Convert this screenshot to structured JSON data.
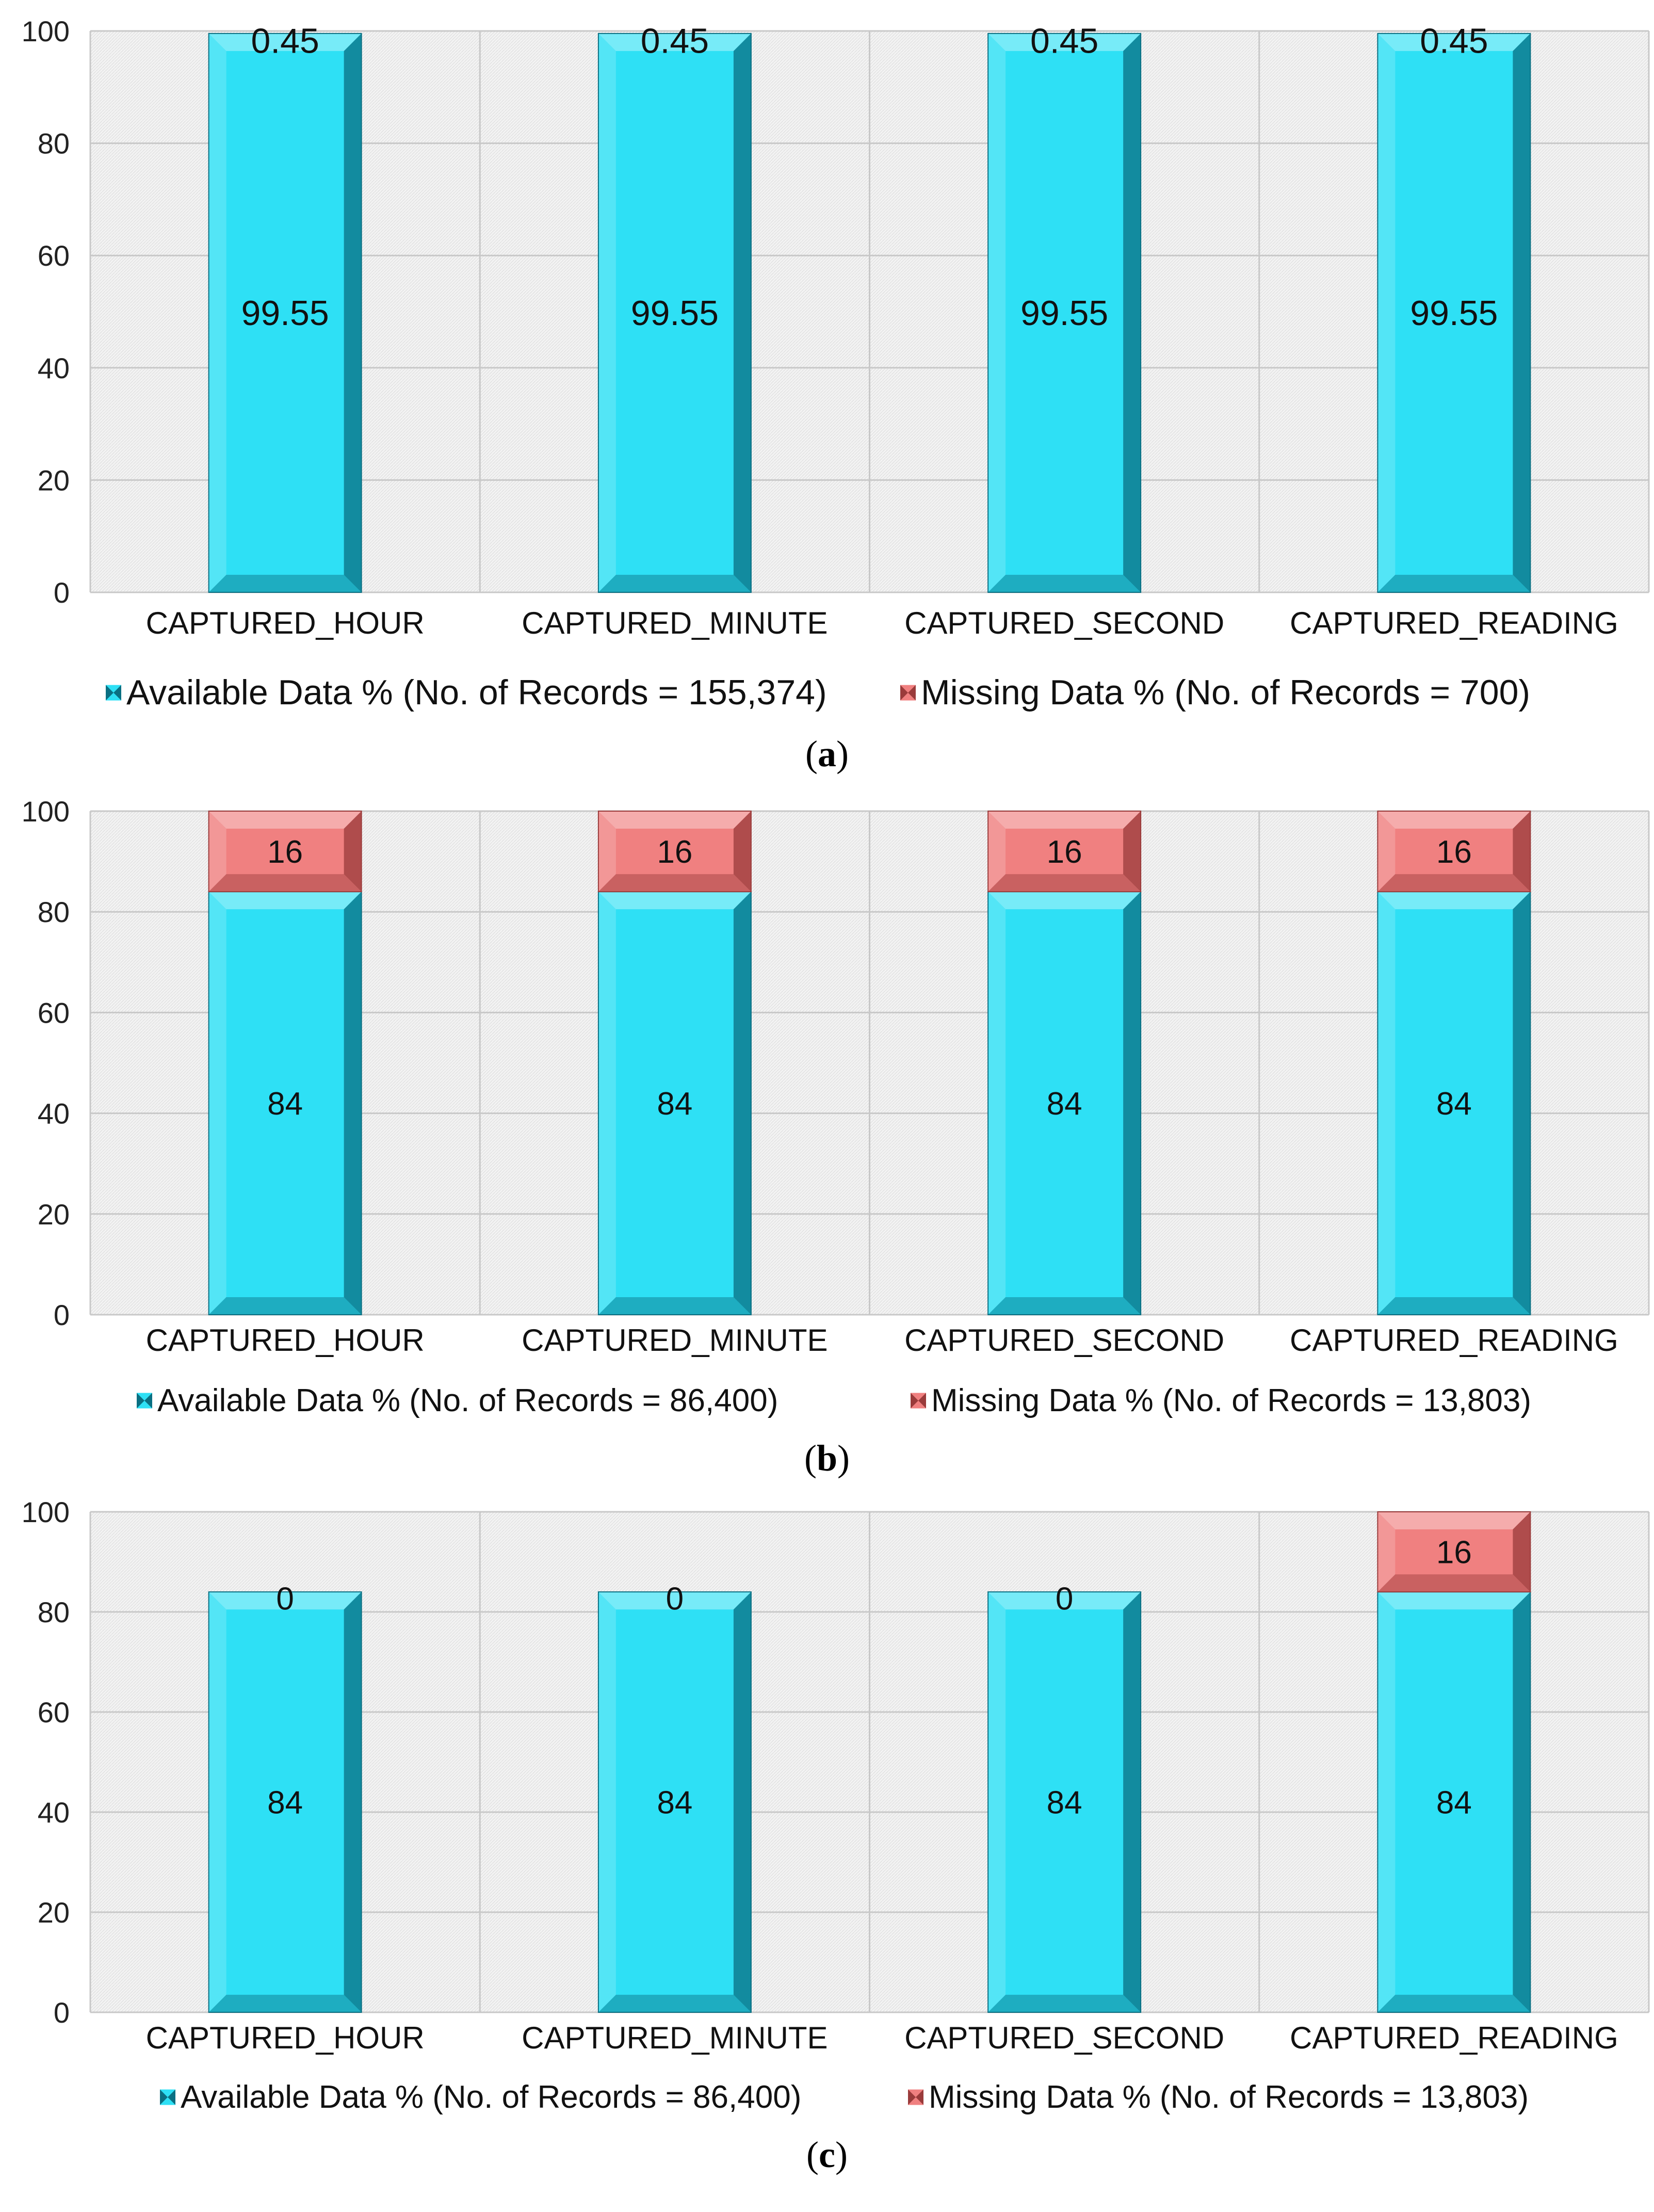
{
  "colors": {
    "available": "#2ee0f5",
    "available_dark": "#0a6f82",
    "missing": "#f08080",
    "missing_dark": "#9a3b3b",
    "grid": "#c8c8c8",
    "plot_bg": "#f0f0f0"
  },
  "chart_data": [
    {
      "type": "bar",
      "stacked": true,
      "panel_label": "a",
      "categories": [
        "CAPTURED_HOUR",
        "CAPTURED_MINUTE",
        "CAPTURED_SECOND",
        "CAPTURED_READING"
      ],
      "series": [
        {
          "name": "Available Data % (No. of Records = 155,374)",
          "values": [
            99.55,
            99.55,
            99.55,
            99.55
          ],
          "labels": [
            "99.55",
            "99.55",
            "99.55",
            "99.55"
          ]
        },
        {
          "name": "Missing Data % (No. of Records = 700)",
          "values": [
            0.45,
            0.45,
            0.45,
            0.45
          ],
          "labels": [
            "0.45",
            "0.45",
            "0.45",
            "0.45"
          ]
        }
      ],
      "y_ticks": [
        "0",
        "20",
        "40",
        "60",
        "80",
        "100"
      ],
      "ylim": [
        0,
        100
      ],
      "grid": true,
      "legend_position": "bottom"
    },
    {
      "type": "bar",
      "stacked": true,
      "panel_label": "b",
      "categories": [
        "CAPTURED_HOUR",
        "CAPTURED_MINUTE",
        "CAPTURED_SECOND",
        "CAPTURED_READING"
      ],
      "series": [
        {
          "name": "Available Data % (No. of Records = 86,400)",
          "values": [
            84,
            84,
            84,
            84
          ],
          "labels": [
            "84",
            "84",
            "84",
            "84"
          ]
        },
        {
          "name": "Missing Data % (No. of Records = 13,803)",
          "values": [
            16,
            16,
            16,
            16
          ],
          "labels": [
            "16",
            "16",
            "16",
            "16"
          ]
        }
      ],
      "y_ticks": [
        "0",
        "20",
        "40",
        "60",
        "80",
        "100"
      ],
      "ylim": [
        0,
        100
      ],
      "grid": true,
      "legend_position": "bottom"
    },
    {
      "type": "bar",
      "stacked": true,
      "panel_label": "c",
      "categories": [
        "CAPTURED_HOUR",
        "CAPTURED_MINUTE",
        "CAPTURED_SECOND",
        "CAPTURED_READING"
      ],
      "series": [
        {
          "name": "Available Data % (No. of Records = 86,400)",
          "values": [
            84,
            84,
            84,
            84
          ],
          "labels": [
            "84",
            "84",
            "84",
            "84"
          ]
        },
        {
          "name": "Missing Data % (No. of Records = 13,803)",
          "values": [
            0,
            0,
            0,
            16
          ],
          "labels": [
            "0",
            "0",
            "0",
            "16"
          ]
        }
      ],
      "y_ticks": [
        "0",
        "20",
        "40",
        "60",
        "80",
        "100"
      ],
      "ylim": [
        0,
        100
      ],
      "grid": true,
      "legend_position": "bottom"
    }
  ]
}
